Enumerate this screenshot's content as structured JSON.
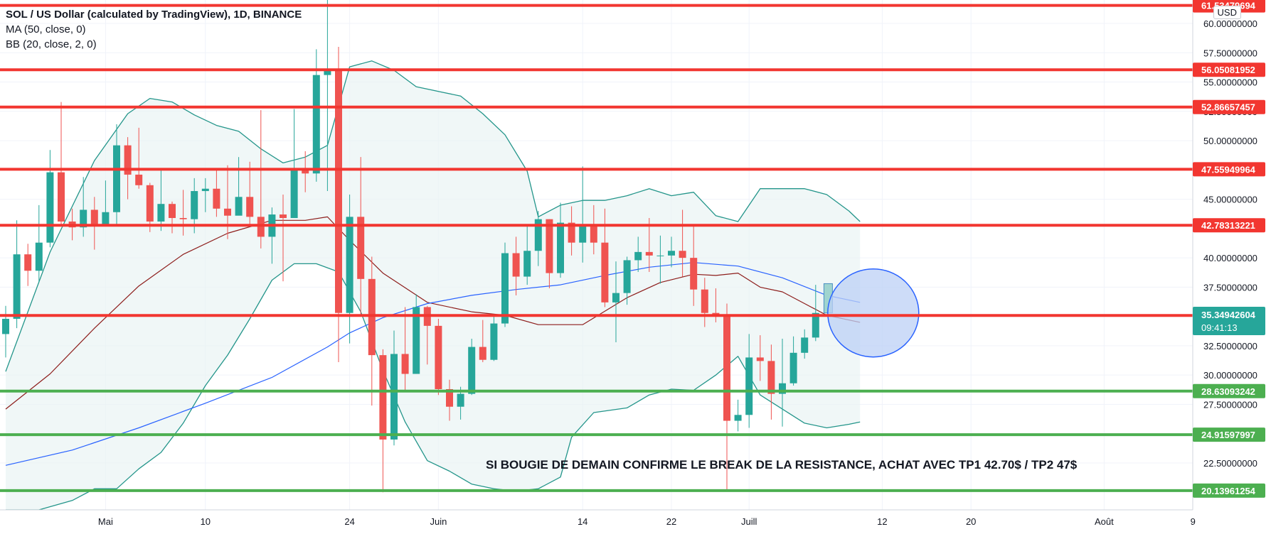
{
  "header": {
    "title": "SOL / US Dollar (calculated by TradingView), 1D, BINANCE",
    "indicator_ma": "MA (50, close, 0)",
    "indicator_bb": "BB (20, close, 2, 0)",
    "currency": "USD"
  },
  "annotation_text": "SI BOUGIE DE DEMAIN CONFIRME LE BREAK DE LA RESISTANCE, ACHAT AVEC TP1 42.70$ / TP2 47$",
  "colors": {
    "up": "#26a69a",
    "down": "#ef5350",
    "resistance": "#f23630",
    "support": "#4caf50",
    "ma": "#2962ff",
    "bb_basis": "#8d1d1b",
    "bb_band": "#23958a",
    "circle": "#2962ff"
  },
  "chart_data": {
    "type": "candlestick",
    "symbol": "SOLUSD",
    "timeframe": "1D",
    "y_axis": {
      "range": [
        18.5,
        62.0
      ],
      "tick_labels": [
        "60.00000000",
        "57.50000000",
        "55.00000000",
        "52.50000000",
        "50.00000000",
        "45.00000000",
        "40.00000000",
        "37.50000000",
        "32.50000000",
        "30.00000000",
        "27.50000000",
        "22.50000000"
      ],
      "tick_values": [
        60,
        57.5,
        55,
        52.5,
        50,
        45,
        40,
        37.5,
        32.5,
        30,
        27.5,
        22.5
      ]
    },
    "x_axis": {
      "tick_labels": [
        "Mai",
        "10",
        "24",
        "Juin",
        "14",
        "22",
        "Juill",
        "12",
        "20",
        "Août",
        "9"
      ],
      "tick_index": [
        9,
        18,
        31,
        39,
        52,
        60,
        67,
        79,
        87,
        99,
        107
      ]
    },
    "current_price": "35.34942604",
    "countdown": "09:41:13",
    "price_levels": [
      {
        "label": "61.53479694",
        "value": 61.535,
        "kind": "resistance"
      },
      {
        "label": "56.05081952",
        "value": 56.051,
        "kind": "resistance"
      },
      {
        "label": "52.86657457",
        "value": 52.867,
        "kind": "resistance"
      },
      {
        "label": "47.55949964",
        "value": 47.559,
        "kind": "resistance"
      },
      {
        "label": "42.78313221",
        "value": 42.783,
        "kind": "resistance"
      },
      {
        "label": "35.08787358",
        "value": 35.088,
        "kind": "resistance"
      },
      {
        "label": "28.63093242",
        "value": 28.631,
        "kind": "support"
      },
      {
        "label": "24.91597997",
        "value": 24.916,
        "kind": "support"
      },
      {
        "label": "20.13961254",
        "value": 20.14,
        "kind": "support"
      }
    ],
    "candles": [
      [
        33.5,
        34.8,
        35.9,
        31.5
      ],
      [
        34.8,
        40.3,
        43.2,
        34.0
      ],
      [
        40.3,
        38.9,
        41.2,
        37.6
      ],
      [
        38.9,
        41.3,
        44.5,
        37.9
      ],
      [
        41.3,
        47.3,
        49.2,
        40.9
      ],
      [
        47.3,
        43.1,
        53.3,
        42.8
      ],
      [
        43.1,
        42.6,
        44.2,
        41.5
      ],
      [
        42.6,
        44.1,
        46.9,
        41.8
      ],
      [
        44.1,
        42.7,
        45.2,
        40.7
      ],
      [
        42.7,
        43.9,
        46.6,
        42.7
      ],
      [
        43.9,
        49.6,
        51.4,
        42.7
      ],
      [
        49.6,
        47.1,
        50.3,
        45.0
      ],
      [
        47.1,
        46.2,
        51.1,
        45.9
      ],
      [
        46.2,
        43.1,
        46.4,
        42.2
      ],
      [
        43.1,
        44.6,
        47.6,
        42.3
      ],
      [
        44.6,
        43.4,
        44.8,
        42.1
      ],
      [
        43.4,
        43.3,
        45.8,
        41.9
      ],
      [
        43.3,
        45.7,
        46.8,
        42.1
      ],
      [
        45.7,
        45.9,
        46.8,
        43.9
      ],
      [
        45.9,
        44.2,
        47.5,
        43.5
      ],
      [
        44.2,
        43.6,
        47.9,
        41.6
      ],
      [
        43.6,
        45.2,
        48.6,
        43.7
      ],
      [
        45.2,
        43.5,
        48.2,
        42.7
      ],
      [
        43.5,
        41.8,
        52.6,
        40.8
      ],
      [
        41.8,
        43.7,
        44.3,
        39.5
      ],
      [
        43.7,
        43.4,
        45.4,
        38.0
      ],
      [
        43.4,
        47.6,
        52.7,
        43.4
      ],
      [
        47.6,
        47.2,
        49.1,
        45.6
      ],
      [
        47.2,
        55.6,
        57.8,
        46.5
      ],
      [
        55.6,
        56.1,
        63.3,
        45.7
      ],
      [
        56.1,
        35.3,
        58.0,
        31.1
      ],
      [
        35.3,
        43.5,
        45.4,
        32.7
      ],
      [
        43.5,
        38.2,
        48.6,
        35.1
      ],
      [
        38.2,
        31.7,
        40.1,
        27.4
      ],
      [
        31.7,
        24.5,
        32.2,
        20.0
      ],
      [
        24.5,
        31.8,
        33.8,
        24.0
      ],
      [
        31.8,
        30.1,
        35.8,
        28.7
      ],
      [
        30.1,
        35.8,
        36.9,
        30.1
      ],
      [
        35.8,
        34.2,
        35.9,
        30.9
      ],
      [
        34.2,
        28.8,
        34.8,
        28.3
      ],
      [
        28.8,
        27.3,
        29.6,
        26.1
      ],
      [
        27.3,
        28.4,
        29.0,
        26.2
      ],
      [
        28.4,
        32.4,
        33.1,
        28.3
      ],
      [
        32.4,
        31.3,
        34.7,
        31.1
      ],
      [
        31.3,
        34.4,
        35.1,
        31.2
      ],
      [
        34.4,
        40.4,
        41.3,
        34.1
      ],
      [
        40.4,
        38.4,
        41.8,
        36.8
      ],
      [
        38.4,
        40.6,
        42.7,
        37.7
      ],
      [
        40.6,
        43.3,
        44.0,
        39.3
      ],
      [
        43.3,
        38.7,
        43.3,
        37.4
      ],
      [
        38.7,
        43.0,
        44.7,
        38.3
      ],
      [
        43.0,
        41.3,
        44.4,
        40.2
      ],
      [
        41.3,
        42.8,
        47.8,
        39.6
      ],
      [
        42.8,
        41.3,
        44.5,
        40.3
      ],
      [
        41.3,
        36.2,
        44.2,
        35.8
      ],
      [
        36.2,
        37.0,
        39.7,
        32.8
      ],
      [
        37.0,
        39.8,
        40.1,
        36.0
      ],
      [
        39.8,
        40.5,
        41.8,
        38.8
      ],
      [
        40.5,
        40.2,
        43.4,
        38.8
      ],
      [
        40.2,
        40.2,
        41.9,
        37.8
      ],
      [
        40.2,
        40.6,
        41.8,
        39.2
      ],
      [
        40.6,
        40.0,
        44.1,
        38.4
      ],
      [
        40.0,
        37.3,
        42.8,
        35.9
      ],
      [
        37.3,
        35.3,
        38.3,
        34.1
      ],
      [
        35.3,
        35.1,
        37.4,
        34.5
      ],
      [
        35.1,
        26.1,
        36.1,
        20.2
      ],
      [
        26.1,
        26.6,
        27.9,
        25.2
      ],
      [
        26.6,
        31.5,
        33.5,
        25.5
      ],
      [
        31.5,
        31.2,
        33.4,
        29.5
      ],
      [
        31.2,
        28.4,
        32.6,
        26.2
      ],
      [
        28.4,
        29.3,
        33.1,
        25.6
      ],
      [
        29.3,
        31.9,
        33.3,
        29.1
      ],
      [
        31.9,
        33.2,
        33.9,
        31.4
      ],
      [
        33.2,
        35.3,
        37.7,
        32.9
      ]
    ],
    "ma50": [
      [
        0,
        22.3
      ],
      [
        6,
        23.6
      ],
      [
        12,
        25.5
      ],
      [
        18,
        27.6
      ],
      [
        24,
        29.8
      ],
      [
        29,
        32.4
      ],
      [
        31,
        33.6
      ],
      [
        34,
        34.9
      ],
      [
        38,
        36.1
      ],
      [
        42,
        36.8
      ],
      [
        46,
        37.3
      ],
      [
        50,
        37.7
      ],
      [
        54,
        38.5
      ],
      [
        58,
        39.2
      ],
      [
        62,
        39.6
      ],
      [
        66,
        39.3
      ],
      [
        70,
        38.3
      ],
      [
        74,
        36.8
      ],
      [
        77,
        36.2
      ]
    ],
    "bb_basis": [
      [
        0,
        27.1
      ],
      [
        4,
        30.1
      ],
      [
        8,
        34.0
      ],
      [
        12,
        37.6
      ],
      [
        16,
        40.3
      ],
      [
        20,
        42.1
      ],
      [
        24,
        43.2
      ],
      [
        27,
        43.2
      ],
      [
        29,
        43.5
      ],
      [
        31,
        41.5
      ],
      [
        34,
        38.7
      ],
      [
        38,
        36.2
      ],
      [
        42,
        35.4
      ],
      [
        45,
        35.1
      ],
      [
        48,
        34.3
      ],
      [
        52,
        34.3
      ],
      [
        56,
        36.6
      ],
      [
        59,
        37.9
      ],
      [
        62,
        38.6
      ],
      [
        64,
        38.5
      ],
      [
        66,
        38.7
      ],
      [
        68,
        37.5
      ],
      [
        70,
        37.1
      ],
      [
        72,
        36.1
      ],
      [
        74,
        35.1
      ],
      [
        77,
        34.5
      ]
    ],
    "bb_upper": [
      [
        0,
        30.3
      ],
      [
        4,
        40.5
      ],
      [
        8,
        48.3
      ],
      [
        11,
        52.3
      ],
      [
        13,
        53.6
      ],
      [
        15,
        53.3
      ],
      [
        17,
        52.2
      ],
      [
        19,
        51.3
      ],
      [
        21,
        50.8
      ],
      [
        23,
        49.3
      ],
      [
        25,
        48.1
      ],
      [
        27,
        48.6
      ],
      [
        29,
        49.6
      ],
      [
        31,
        56.3
      ],
      [
        33,
        56.8
      ],
      [
        35,
        56.0
      ],
      [
        37,
        54.6
      ],
      [
        39,
        54.2
      ],
      [
        41,
        53.8
      ],
      [
        43,
        52.3
      ],
      [
        45,
        50.5
      ],
      [
        47,
        47.4
      ],
      [
        48,
        43.5
      ],
      [
        50,
        44.5
      ],
      [
        52,
        44.9
      ],
      [
        54,
        44.9
      ],
      [
        56,
        45.3
      ],
      [
        58,
        45.9
      ],
      [
        60,
        45.3
      ],
      [
        62,
        45.6
      ],
      [
        64,
        43.6
      ],
      [
        66,
        43.1
      ],
      [
        68,
        45.9
      ],
      [
        70,
        45.9
      ],
      [
        72,
        45.9
      ],
      [
        74,
        45.4
      ],
      [
        76,
        44.0
      ],
      [
        77,
        43.1
      ]
    ],
    "bb_lower": [
      [
        0,
        18.5
      ],
      [
        3,
        18.5
      ],
      [
        6,
        19.3
      ],
      [
        8,
        20.3
      ],
      [
        10,
        20.3
      ],
      [
        12,
        22.0
      ],
      [
        14,
        23.4
      ],
      [
        16,
        25.9
      ],
      [
        18,
        29.1
      ],
      [
        20,
        31.7
      ],
      [
        22,
        34.8
      ],
      [
        24,
        38.1
      ],
      [
        26,
        39.5
      ],
      [
        28,
        39.5
      ],
      [
        30,
        38.8
      ],
      [
        32,
        35.4
      ],
      [
        34,
        30.4
      ],
      [
        36,
        26.0
      ],
      [
        38,
        22.7
      ],
      [
        40,
        21.8
      ],
      [
        42,
        20.7
      ],
      [
        44,
        20.3
      ],
      [
        46,
        20.1
      ],
      [
        48,
        20.3
      ],
      [
        50,
        21.3
      ],
      [
        51,
        24.7
      ],
      [
        53,
        26.8
      ],
      [
        56,
        27.2
      ],
      [
        58,
        28.3
      ],
      [
        60,
        28.8
      ],
      [
        62,
        28.7
      ],
      [
        64,
        30.0
      ],
      [
        66,
        31.6
      ],
      [
        68,
        28.3
      ],
      [
        70,
        27.1
      ],
      [
        72,
        25.9
      ],
      [
        74,
        25.5
      ],
      [
        76,
        25.8
      ],
      [
        77,
        26.0
      ]
    ],
    "next_candle": {
      "open": 35.3,
      "close": 37.8
    },
    "circle_center": {
      "index": 78,
      "value": 35.3
    }
  }
}
